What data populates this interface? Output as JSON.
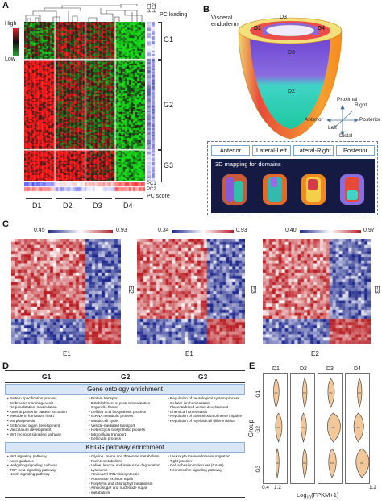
{
  "panels": {
    "A": {
      "letter": "A",
      "legend": {
        "high": "High",
        "low": "Low"
      },
      "pc_loading": "PC loading",
      "pc_labels": [
        "PC1",
        "PC2"
      ],
      "groups": [
        "G1",
        "G2",
        "G3"
      ],
      "domains": [
        "D1",
        "D2",
        "D3",
        "D4"
      ],
      "pc_score": "PC score",
      "score_labels": [
        "PC1",
        "PC2"
      ]
    },
    "B": {
      "letter": "B",
      "visceral": "Visceral\nendoderm",
      "regions": [
        "D1",
        "D3",
        "D4",
        "D3",
        "D2"
      ],
      "axes": {
        "proximal": "Proximal",
        "distal": "Distal",
        "anterior": "Anterior",
        "posterior": "Posterior",
        "left": "Left",
        "right": "Right"
      },
      "views": [
        "Anterior",
        "Lateral-Left",
        "Lateral-Right",
        "Posterior"
      ],
      "mapping_title": "3D mapping for domains"
    },
    "C": {
      "letter": "C",
      "maps": [
        {
          "min": "0.45",
          "max": "0.93",
          "xlabel": "E1",
          "ylabel": "E2"
        },
        {
          "min": "0.34",
          "max": "0.93",
          "xlabel": "E1",
          "ylabel": "E3"
        },
        {
          "min": "0.40",
          "max": "0.97",
          "xlabel": "E2",
          "ylabel": "E3"
        }
      ]
    },
    "D": {
      "letter": "D",
      "headers": [
        "G1",
        "G2",
        "G3"
      ],
      "go_title": "Gene ontology enrichment",
      "kegg_title": "KEGG pathway enrichment",
      "go_terms": [
        [
          "Pattern specification process",
          "Embryonic morphogenesis",
          "Regionalization, Gastrulation",
          "Anterior/posterior pattern formation",
          "Mesoderm formation, heart",
          "Morphogenesis",
          "Embryonic organ development",
          "Vasculature development",
          "Wnt receptor signaling pathway"
        ],
        [
          "Protein transport",
          "Establishment of protein localization",
          "Organelle fission",
          "Cellular acid biosynthetic process",
          "ncRNA metabolic process",
          "Mitotic cell cycle",
          "Vesicle-mediated transport",
          "Heterocycle biosynthetic process",
          "Intracellular transport",
          "Cell cycle process"
        ],
        [
          "Regulation of neurological system process",
          "Cellular ion homeostasis",
          "Placenta blood vessel development",
          "Chemical homeostasis",
          "Regulation of transmission of nerve impulse",
          "Regulation of myeloid cell differentiation"
        ]
      ],
      "kegg_terms": [
        [
          "Wnt signaling pathway",
          "Axon guidance",
          "Hedgehog signaling pathway",
          "TGF-beta signaling pathway",
          "Notch signaling pathway"
        ],
        [
          "Glycine, serine and threonine metabolism",
          "Purine metabolism",
          "Valine, leucine and isoleucine degradation",
          "Lysosome",
          "Aminoacyl-tRNA biosynthesis",
          "Nucleotide excision repair",
          "Porphyrin and chlorophyll metabolism",
          "Amino sugar and nucleotide sugar",
          "metabolism"
        ],
        [
          "Leukocyte transendothelial migration",
          "Tight junction",
          "Cell adhesion molecules (CAMs)",
          "Neurotrophin signaling pathway"
        ]
      ]
    },
    "E": {
      "letter": "E",
      "domains": [
        "D1",
        "D2",
        "D3",
        "D4"
      ],
      "groups": [
        "G1",
        "G2",
        "G3"
      ],
      "ylabel": "Group",
      "xticks": [
        "0.4",
        "1.2"
      ],
      "xlabel_main": "Log",
      "xlabel_sub": "10",
      "xlabel_rest": "(FPKM+1)",
      "xlabel_last": "1.2"
    }
  },
  "colors": {
    "red": "#d42a2a",
    "green": "#2f9c36",
    "blue": "#23318f",
    "violin": "#f2c89a"
  }
}
